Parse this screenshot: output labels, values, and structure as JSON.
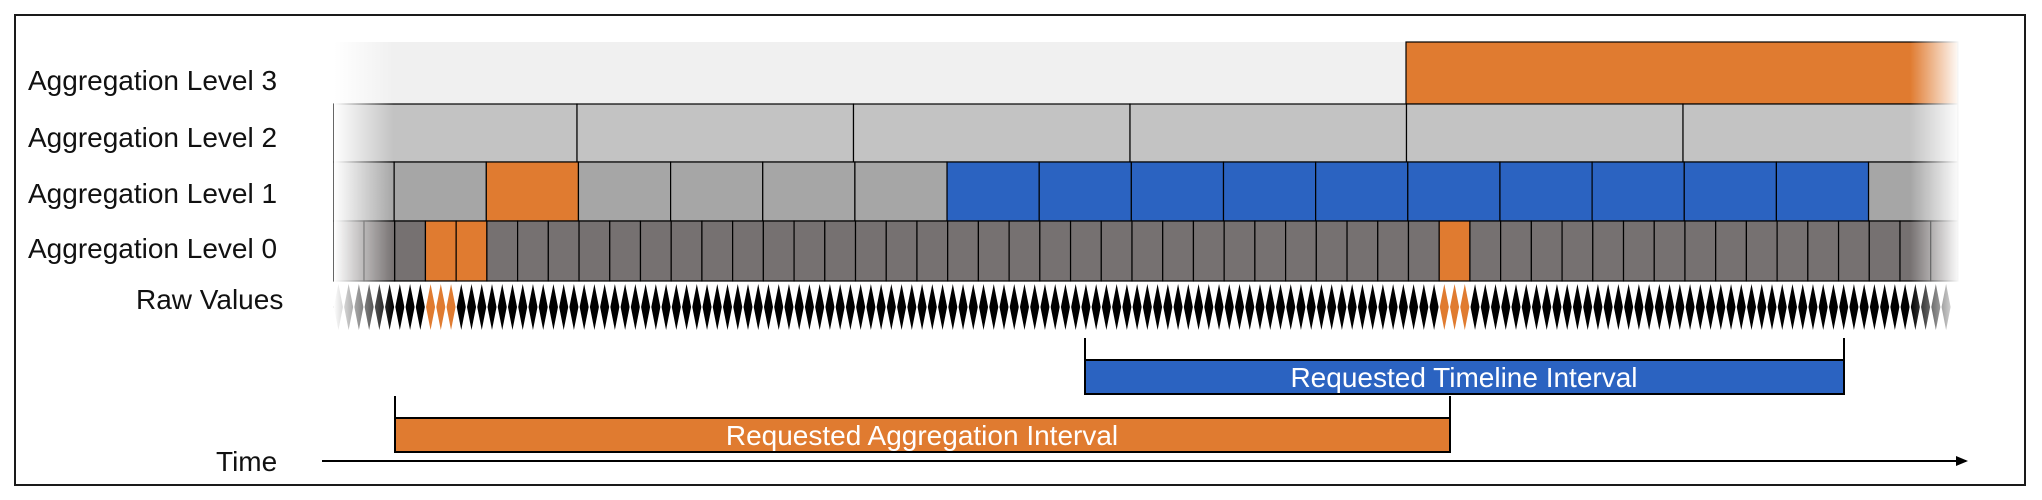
{
  "rows": {
    "level3_label": "Aggregation Level 3",
    "level2_label": "Aggregation Level 2",
    "level1_label": "Aggregation Level 1",
    "level0_label": "Aggregation Level 0",
    "raw_label": "Raw Values"
  },
  "axis": {
    "time_label": "Time"
  },
  "intervals": {
    "timeline_label": "Requested Timeline Interval",
    "aggregation_label": "Requested Aggregation Interval"
  },
  "colors": {
    "orange": "#e07b30",
    "blue": "#2b63c1",
    "level3_gray": "#f0f0f0",
    "level2_gray": "#c3c3c3",
    "level1_gray": "#a6a6a6",
    "level0_gray": "#767171",
    "raw_black": "#000000"
  },
  "highlights": {
    "level3_orange_blocks": [
      2
    ],
    "level1_orange_blocks": [
      2
    ],
    "level1_blue_blocks": [
      7,
      8,
      9,
      10,
      11,
      12,
      13,
      14,
      15,
      16
    ],
    "level0_orange_blocks": [
      2,
      3,
      35
    ],
    "raw_orange_groups": [
      2,
      35
    ]
  }
}
